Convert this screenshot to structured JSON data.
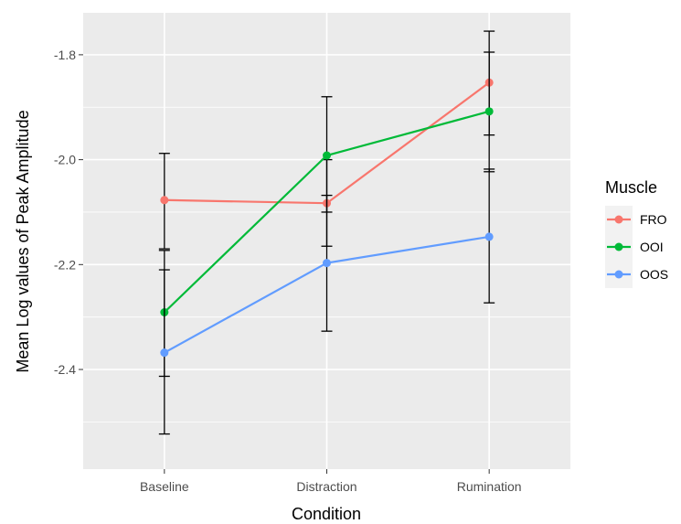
{
  "chart_data": {
    "type": "line",
    "title": "",
    "xlabel": "Condition",
    "ylabel": "Mean Log values of Peak Amplitude",
    "categories": [
      "Baseline",
      "Distraction",
      "Rumination"
    ],
    "ylim": [
      -2.59,
      -1.72
    ],
    "yticks": [
      -2.4,
      -2.2,
      -2.0,
      -1.8
    ],
    "ytick_labels": [
      "-2.4",
      "-2.2",
      "-2.0",
      "-1.8"
    ],
    "grid": true,
    "legend": {
      "title": "Muscle",
      "position": "right"
    },
    "series": [
      {
        "name": "FRO",
        "color": "#F8766D",
        "values": [
          -2.077,
          -2.083,
          -1.853
        ],
        "error_low": [
          -2.17,
          -2.165,
          -1.953
        ],
        "error_high": [
          -1.988,
          -2.0,
          -1.755
        ]
      },
      {
        "name": "OOI",
        "color": "#00BA38",
        "values": [
          -2.291,
          -1.992,
          -1.908
        ],
        "error_low": [
          -2.413,
          -2.1,
          -2.023
        ],
        "error_high": [
          -2.173,
          -1.88,
          -1.795
        ]
      },
      {
        "name": "OOS",
        "color": "#619CFF",
        "values": [
          -2.368,
          -2.197,
          -2.147
        ],
        "error_low": [
          -2.523,
          -2.327,
          -2.273
        ],
        "error_high": [
          -2.21,
          -2.068,
          -2.018
        ]
      }
    ]
  }
}
